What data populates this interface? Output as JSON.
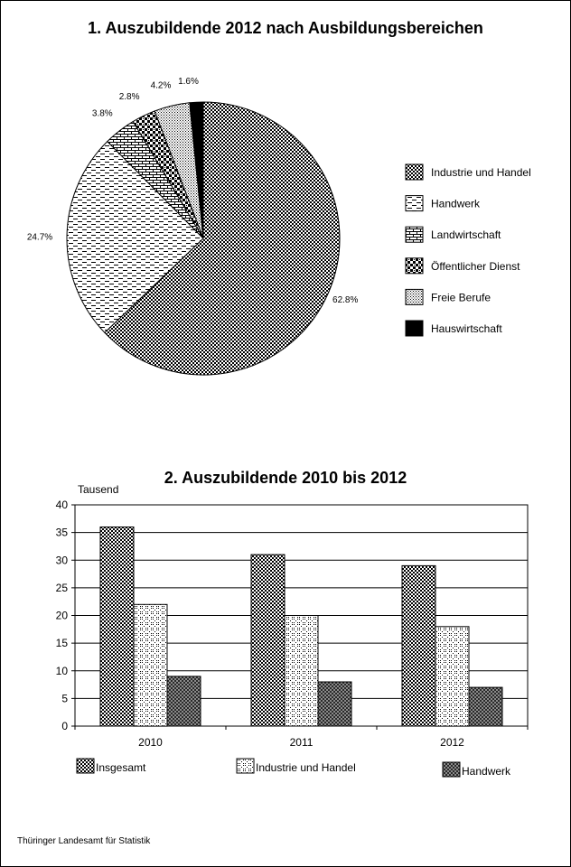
{
  "chart_data": [
    {
      "type": "pie",
      "title": "1. Auszubildende 2012 nach Ausbildungsbereichen",
      "slices": [
        {
          "label": "Industrie und Handel",
          "value": 62.8,
          "value_label": "62.8%",
          "pattern": "checker-dense"
        },
        {
          "label": "Handwerk",
          "value": 24.7,
          "value_label": "24.7%",
          "pattern": "dashes"
        },
        {
          "label": "Landwirtschaft",
          "value": 3.8,
          "value_label": "3.8%",
          "pattern": "bricks"
        },
        {
          "label": "Öffentlicher Dienst",
          "value": 2.8,
          "value_label": "2.8%",
          "pattern": "checker-bold"
        },
        {
          "label": "Freie Berufe",
          "value": 4.2,
          "value_label": "4.2%",
          "pattern": "dots"
        },
        {
          "label": "Hauswirtschaft",
          "value": 1.6,
          "value_label": "1.6%",
          "pattern": "solid"
        }
      ],
      "legend_position": "right"
    },
    {
      "type": "bar",
      "title": "2. Auszubildende 2010 bis 2012",
      "ylabel": "Tausend",
      "ylim": [
        0,
        40
      ],
      "yticks": [
        0,
        5,
        10,
        15,
        20,
        25,
        30,
        35,
        40
      ],
      "grid": true,
      "categories": [
        "2010",
        "2011",
        "2012"
      ],
      "series": [
        {
          "name": "Insgesamt",
          "values": [
            36,
            31,
            29
          ],
          "pattern": "checker-dense"
        },
        {
          "name": "Industrie und Handel",
          "values": [
            22,
            20,
            18
          ],
          "pattern": "xhatch"
        },
        {
          "name": "Handwerk",
          "values": [
            9,
            8,
            7
          ],
          "pattern": "checker-medium"
        }
      ],
      "legend_position": "bottom"
    }
  ],
  "footer": "Thüringer Landesamt für Statistik"
}
